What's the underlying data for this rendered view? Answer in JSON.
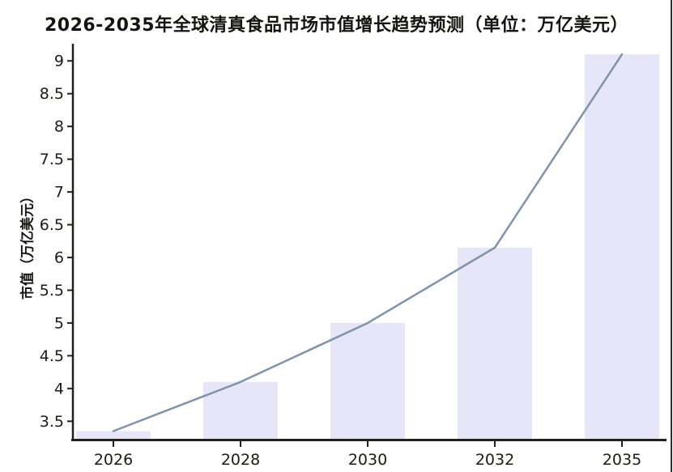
{
  "chart_data": {
    "type": "bar",
    "overlay": "line",
    "title": "2026-2035年全球清真食品市场市值增长趋势预测（单位：万亿美元）",
    "categories": [
      "2026",
      "2028",
      "2030",
      "2032",
      "2035"
    ],
    "values": [
      3.35,
      4.1,
      5.0,
      6.15,
      9.1
    ],
    "line_overlay_values": [
      3.35,
      4.1,
      5.0,
      6.15,
      9.1
    ],
    "xlabel": "",
    "ylabel": "市值（万亿美元）",
    "yticks": [
      3.5,
      4,
      4.5,
      5,
      5.5,
      6,
      6.5,
      7,
      7.5,
      8,
      8.5,
      9
    ],
    "ylim": [
      3.22,
      9.25
    ],
    "grid": false,
    "legend": "none",
    "colors": {
      "bar": "#e6e6f8",
      "line": "#8093ab",
      "axis": "#22211a",
      "text": "#1c1c16"
    }
  }
}
